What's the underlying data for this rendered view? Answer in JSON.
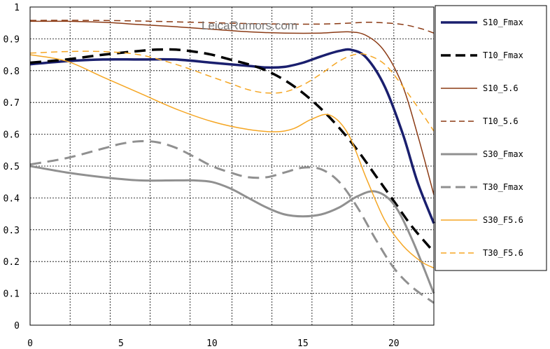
{
  "watermark": "LeicaRumors.com",
  "chart_data": {
    "type": "line",
    "title": "",
    "xlabel": "",
    "ylabel": "",
    "xlim": [
      0,
      22.2
    ],
    "ylim": [
      0,
      1
    ],
    "x_ticks": [
      0,
      5,
      10,
      15,
      20
    ],
    "x_grid": [
      0,
      2.2,
      4.4,
      6.6,
      8.8,
      11.1,
      13.3,
      15.5,
      17.7,
      20,
      22.2
    ],
    "y_ticks": [
      0,
      0.1,
      0.2,
      0.3,
      0.4,
      0.5,
      0.6,
      0.7,
      0.8,
      0.9,
      1
    ],
    "y_tick_labels": [
      "0",
      "0.1",
      "0.2",
      "0.3",
      "0.4",
      "0.5",
      "0.6",
      "0.7",
      "0.8",
      "0.9",
      "1"
    ],
    "grid": true,
    "legend_position": "right",
    "series": [
      {
        "name": "S10_Fmax",
        "color": "#1a1f6e",
        "width": 3.5,
        "dash": "solid",
        "x": [
          0,
          2,
          4,
          6,
          8,
          10,
          12,
          13,
          14,
          15,
          16,
          17,
          17.7,
          18.5,
          19.5,
          20.5,
          21.3,
          22.2
        ],
        "y": [
          0.82,
          0.83,
          0.835,
          0.835,
          0.835,
          0.825,
          0.815,
          0.81,
          0.812,
          0.825,
          0.845,
          0.862,
          0.865,
          0.84,
          0.75,
          0.6,
          0.45,
          0.32
        ]
      },
      {
        "name": "T10_Fmax",
        "color": "#000000",
        "width": 3.5,
        "dash": "long",
        "x": [
          0,
          2,
          4,
          6,
          7,
          8,
          9,
          10,
          11,
          12,
          13,
          14,
          15,
          16,
          17,
          18,
          19,
          20,
          21,
          22.2
        ],
        "y": [
          0.825,
          0.835,
          0.85,
          0.862,
          0.866,
          0.866,
          0.86,
          0.85,
          0.835,
          0.82,
          0.8,
          0.77,
          0.73,
          0.68,
          0.62,
          0.55,
          0.47,
          0.39,
          0.31,
          0.23
        ]
      },
      {
        "name": "S10_5.6",
        "color": "#8b3a14",
        "width": 1.5,
        "dash": "solid",
        "x": [
          0,
          2,
          4,
          6,
          8,
          10,
          12,
          14,
          16,
          17.5,
          18.5,
          19.5,
          20.5,
          21.3,
          22.2
        ],
        "y": [
          0.955,
          0.955,
          0.952,
          0.945,
          0.938,
          0.93,
          0.922,
          0.918,
          0.918,
          0.922,
          0.91,
          0.86,
          0.75,
          0.6,
          0.41
        ]
      },
      {
        "name": "T10_5.6",
        "color": "#8b3a14",
        "width": 1.5,
        "dash": "short",
        "x": [
          0,
          3,
          6,
          9,
          12,
          15,
          17,
          18.5,
          19.5,
          20.5,
          21.5,
          22.2
        ],
        "y": [
          0.958,
          0.958,
          0.956,
          0.952,
          0.948,
          0.946,
          0.948,
          0.952,
          0.95,
          0.945,
          0.932,
          0.918
        ]
      },
      {
        "name": "S30_Fmax",
        "color": "#909090",
        "width": 3,
        "dash": "solid",
        "x": [
          0,
          2,
          4,
          6,
          8,
          9,
          10,
          11,
          12,
          13,
          14,
          15,
          16,
          17,
          18,
          19,
          20,
          21,
          22.2
        ],
        "y": [
          0.5,
          0.48,
          0.465,
          0.455,
          0.455,
          0.455,
          0.45,
          0.43,
          0.4,
          0.37,
          0.348,
          0.342,
          0.348,
          0.37,
          0.405,
          0.42,
          0.38,
          0.27,
          0.1
        ]
      },
      {
        "name": "T30_Fmax",
        "color": "#909090",
        "width": 3,
        "dash": "long",
        "x": [
          0,
          2,
          4,
          5,
          6,
          7,
          8,
          9,
          10,
          11,
          12,
          13,
          14,
          15,
          16,
          17,
          18,
          19,
          20,
          21,
          22.2
        ],
        "y": [
          0.505,
          0.525,
          0.555,
          0.57,
          0.578,
          0.575,
          0.558,
          0.53,
          0.5,
          0.48,
          0.465,
          0.465,
          0.48,
          0.495,
          0.49,
          0.45,
          0.37,
          0.27,
          0.18,
          0.12,
          0.07
        ]
      },
      {
        "name": "S30_F5.6",
        "color": "#f5a623",
        "width": 1.5,
        "dash": "solid",
        "x": [
          0,
          2,
          4,
          6,
          8,
          10,
          12,
          13.5,
          14.5,
          15.5,
          16.5,
          17.5,
          18.5,
          19.5,
          20.5,
          21.5,
          22.2
        ],
        "y": [
          0.85,
          0.83,
          0.78,
          0.73,
          0.68,
          0.64,
          0.615,
          0.608,
          0.618,
          0.648,
          0.66,
          0.6,
          0.46,
          0.33,
          0.25,
          0.2,
          0.18
        ]
      },
      {
        "name": "T30_F5.6",
        "color": "#f5a623",
        "width": 1.5,
        "dash": "short",
        "x": [
          0,
          2,
          4,
          6,
          8,
          10,
          11,
          12,
          13,
          14,
          15,
          16,
          17,
          17.8,
          18.5,
          19.5,
          20.5,
          21.5,
          22.2
        ],
        "y": [
          0.855,
          0.86,
          0.86,
          0.85,
          0.82,
          0.78,
          0.76,
          0.74,
          0.73,
          0.733,
          0.755,
          0.79,
          0.83,
          0.85,
          0.85,
          0.82,
          0.75,
          0.67,
          0.61
        ]
      }
    ]
  }
}
